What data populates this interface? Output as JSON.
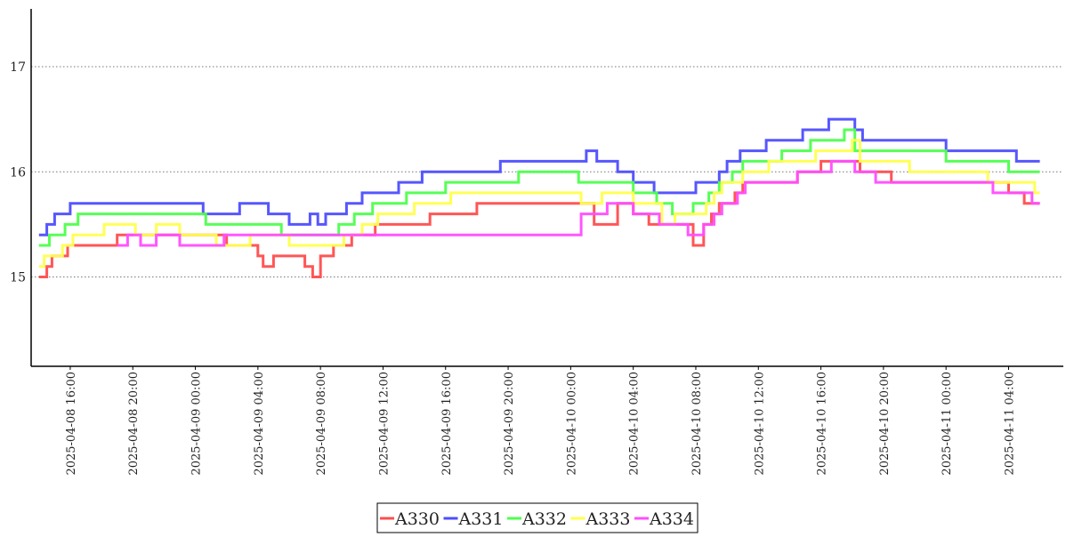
{
  "chart_data": {
    "type": "line",
    "title": "",
    "xlabel": "",
    "ylabel": "",
    "x_range": [
      "2025-04-08 13:30",
      "2025-04-11 07:30"
    ],
    "ylim": [
      14.15,
      17.55
    ],
    "y_ticks": [
      15,
      16,
      17
    ],
    "y_tick_labels": [
      "15",
      "16",
      "17"
    ],
    "x_ticks": [
      "2025-04-08 16:00",
      "2025-04-08 20:00",
      "2025-04-09 00:00",
      "2025-04-09 04:00",
      "2025-04-09 08:00",
      "2025-04-09 12:00",
      "2025-04-09 16:00",
      "2025-04-09 20:00",
      "2025-04-10 00:00",
      "2025-04-10 04:00",
      "2025-04-10 08:00",
      "2025-04-10 12:00",
      "2025-04-10 16:00",
      "2025-04-10 20:00",
      "2025-04-11 00:00",
      "2025-04-11 04:00"
    ],
    "x_tick_labels": [
      "2025-04-08  16:00",
      "2025-04-08  20:00",
      "2025-04-09  00:00",
      "2025-04-09  04:00",
      "2025-04-09  08:00",
      "2025-04-09  12:00",
      "2025-04-09  16:00",
      "2025-04-09  20:00",
      "2025-04-10  00:00",
      "2025-04-10  04:00",
      "2025-04-10  08:00",
      "2025-04-10  12:00",
      "2025-04-10  16:00",
      "2025-04-10  20:00",
      "2025-04-11  00:00",
      "2025-04-11  04:00"
    ],
    "grid": "horizontal dotted",
    "legend_position": "bottom-center",
    "line_style": "step",
    "series": [
      {
        "name": "A330",
        "color": "#ff4d4d",
        "points": [
          [
            "2025-04-08 14:00",
            15.0
          ],
          [
            "2025-04-08 14:30",
            15.1
          ],
          [
            "2025-04-08 14:50",
            15.2
          ],
          [
            "2025-04-08 15:50",
            15.3
          ],
          [
            "2025-04-08 19:00",
            15.4
          ],
          [
            "2025-04-09 02:00",
            15.3
          ],
          [
            "2025-04-09 04:00",
            15.2
          ],
          [
            "2025-04-09 04:20",
            15.1
          ],
          [
            "2025-04-09 05:00",
            15.2
          ],
          [
            "2025-04-09 07:00",
            15.1
          ],
          [
            "2025-04-09 07:30",
            15.0
          ],
          [
            "2025-04-09 08:00",
            15.2
          ],
          [
            "2025-04-09 08:50",
            15.3
          ],
          [
            "2025-04-09 10:00",
            15.4
          ],
          [
            "2025-04-09 11:30",
            15.5
          ],
          [
            "2025-04-09 15:00",
            15.6
          ],
          [
            "2025-04-09 18:00",
            15.7
          ],
          [
            "2025-04-10 01:30",
            15.5
          ],
          [
            "2025-04-10 03:00",
            15.7
          ],
          [
            "2025-04-10 04:00",
            15.6
          ],
          [
            "2025-04-10 05:00",
            15.5
          ],
          [
            "2025-04-10 07:50",
            15.3
          ],
          [
            "2025-04-10 08:30",
            15.5
          ],
          [
            "2025-04-10 09:00",
            15.6
          ],
          [
            "2025-04-10 09:30",
            15.7
          ],
          [
            "2025-04-10 10:30",
            15.8
          ],
          [
            "2025-04-10 11:00",
            15.9
          ],
          [
            "2025-04-10 14:30",
            16.0
          ],
          [
            "2025-04-10 16:00",
            16.1
          ],
          [
            "2025-04-10 18:30",
            16.0
          ],
          [
            "2025-04-10 20:30",
            15.9
          ],
          [
            "2025-04-11 04:00",
            15.8
          ],
          [
            "2025-04-11 05:00",
            15.7
          ],
          [
            "2025-04-11 06:00",
            15.7
          ]
        ]
      },
      {
        "name": "A331",
        "color": "#4d4dff",
        "points": [
          [
            "2025-04-08 14:00",
            15.4
          ],
          [
            "2025-04-08 14:30",
            15.5
          ],
          [
            "2025-04-08 15:00",
            15.6
          ],
          [
            "2025-04-08 16:00",
            15.7
          ],
          [
            "2025-04-09 00:30",
            15.6
          ],
          [
            "2025-04-09 02:50",
            15.7
          ],
          [
            "2025-04-09 04:40",
            15.6
          ],
          [
            "2025-04-09 06:00",
            15.5
          ],
          [
            "2025-04-09 07:20",
            15.6
          ],
          [
            "2025-04-09 07:50",
            15.5
          ],
          [
            "2025-04-09 08:20",
            15.6
          ],
          [
            "2025-04-09 09:40",
            15.7
          ],
          [
            "2025-04-09 10:40",
            15.8
          ],
          [
            "2025-04-09 13:00",
            15.9
          ],
          [
            "2025-04-09 14:30",
            16.0
          ],
          [
            "2025-04-09 19:30",
            16.1
          ],
          [
            "2025-04-10 01:00",
            16.2
          ],
          [
            "2025-04-10 01:40",
            16.1
          ],
          [
            "2025-04-10 03:00",
            16.0
          ],
          [
            "2025-04-10 04:00",
            15.9
          ],
          [
            "2025-04-10 05:20",
            15.8
          ],
          [
            "2025-04-10 08:00",
            15.9
          ],
          [
            "2025-04-10 09:30",
            16.0
          ],
          [
            "2025-04-10 10:00",
            16.1
          ],
          [
            "2025-04-10 10:50",
            16.2
          ],
          [
            "2025-04-10 12:30",
            16.3
          ],
          [
            "2025-04-10 14:50",
            16.4
          ],
          [
            "2025-04-10 16:30",
            16.5
          ],
          [
            "2025-04-10 18:10",
            16.4
          ],
          [
            "2025-04-10 18:40",
            16.3
          ],
          [
            "2025-04-11 00:00",
            16.2
          ],
          [
            "2025-04-11 04:30",
            16.1
          ],
          [
            "2025-04-11 06:00",
            16.1
          ]
        ]
      },
      {
        "name": "A332",
        "color": "#4dff4d",
        "points": [
          [
            "2025-04-08 14:00",
            15.3
          ],
          [
            "2025-04-08 14:40",
            15.4
          ],
          [
            "2025-04-08 15:40",
            15.5
          ],
          [
            "2025-04-08 16:30",
            15.6
          ],
          [
            "2025-04-09 00:40",
            15.5
          ],
          [
            "2025-04-09 05:30",
            15.4
          ],
          [
            "2025-04-09 09:10",
            15.5
          ],
          [
            "2025-04-09 10:10",
            15.6
          ],
          [
            "2025-04-09 11:20",
            15.7
          ],
          [
            "2025-04-09 13:30",
            15.8
          ],
          [
            "2025-04-09 16:00",
            15.9
          ],
          [
            "2025-04-09 20:40",
            16.0
          ],
          [
            "2025-04-10 00:30",
            15.9
          ],
          [
            "2025-04-10 04:00",
            15.8
          ],
          [
            "2025-04-10 05:30",
            15.7
          ],
          [
            "2025-04-10 06:30",
            15.6
          ],
          [
            "2025-04-10 07:50",
            15.7
          ],
          [
            "2025-04-10 08:50",
            15.8
          ],
          [
            "2025-04-10 09:30",
            15.9
          ],
          [
            "2025-04-10 10:20",
            16.0
          ],
          [
            "2025-04-10 11:00",
            16.1
          ],
          [
            "2025-04-10 13:30",
            16.2
          ],
          [
            "2025-04-10 15:20",
            16.3
          ],
          [
            "2025-04-10 17:30",
            16.4
          ],
          [
            "2025-04-10 18:10",
            16.2
          ],
          [
            "2025-04-11 00:00",
            16.1
          ],
          [
            "2025-04-11 04:00",
            16.0
          ],
          [
            "2025-04-11 06:00",
            16.0
          ]
        ]
      },
      {
        "name": "A333",
        "color": "#ffff4d",
        "points": [
          [
            "2025-04-08 14:00",
            15.1
          ],
          [
            "2025-04-08 14:20",
            15.2
          ],
          [
            "2025-04-08 15:30",
            15.3
          ],
          [
            "2025-04-08 16:10",
            15.4
          ],
          [
            "2025-04-08 18:10",
            15.5
          ],
          [
            "2025-04-08 20:10",
            15.4
          ],
          [
            "2025-04-08 21:30",
            15.5
          ],
          [
            "2025-04-08 23:00",
            15.4
          ],
          [
            "2025-04-09 01:20",
            15.3
          ],
          [
            "2025-04-09 03:30",
            15.4
          ],
          [
            "2025-04-09 06:00",
            15.3
          ],
          [
            "2025-04-09 09:30",
            15.4
          ],
          [
            "2025-04-09 10:40",
            15.5
          ],
          [
            "2025-04-09 11:40",
            15.6
          ],
          [
            "2025-04-09 14:00",
            15.7
          ],
          [
            "2025-04-09 16:20",
            15.8
          ],
          [
            "2025-04-10 00:40",
            15.7
          ],
          [
            "2025-04-10 02:00",
            15.8
          ],
          [
            "2025-04-10 04:00",
            15.7
          ],
          [
            "2025-04-10 05:50",
            15.5
          ],
          [
            "2025-04-10 06:40",
            15.6
          ],
          [
            "2025-04-10 08:40",
            15.7
          ],
          [
            "2025-04-10 09:10",
            15.8
          ],
          [
            "2025-04-10 09:40",
            15.9
          ],
          [
            "2025-04-10 11:00",
            16.0
          ],
          [
            "2025-04-10 12:40",
            16.1
          ],
          [
            "2025-04-10 15:40",
            16.2
          ],
          [
            "2025-04-10 18:00",
            16.3
          ],
          [
            "2025-04-10 18:30",
            16.1
          ],
          [
            "2025-04-10 21:40",
            16.0
          ],
          [
            "2025-04-11 02:40",
            15.9
          ],
          [
            "2025-04-11 05:40",
            15.8
          ],
          [
            "2025-04-11 06:00",
            15.8
          ]
        ]
      },
      {
        "name": "A334",
        "color": "#ff4dff",
        "points": [
          [
            "2025-04-08 19:00",
            15.3
          ],
          [
            "2025-04-08 19:40",
            15.4
          ],
          [
            "2025-04-08 20:30",
            15.3
          ],
          [
            "2025-04-08 21:30",
            15.4
          ],
          [
            "2025-04-08 23:00",
            15.3
          ],
          [
            "2025-04-09 01:50",
            15.4
          ],
          [
            "2025-04-10 00:40",
            15.6
          ],
          [
            "2025-04-10 02:20",
            15.7
          ],
          [
            "2025-04-10 04:00",
            15.6
          ],
          [
            "2025-04-10 05:40",
            15.5
          ],
          [
            "2025-04-10 07:30",
            15.4
          ],
          [
            "2025-04-10 08:30",
            15.5
          ],
          [
            "2025-04-10 09:10",
            15.6
          ],
          [
            "2025-04-10 09:40",
            15.7
          ],
          [
            "2025-04-10 10:40",
            15.8
          ],
          [
            "2025-04-10 11:10",
            15.9
          ],
          [
            "2025-04-10 14:30",
            16.0
          ],
          [
            "2025-04-10 16:40",
            16.1
          ],
          [
            "2025-04-10 18:10",
            16.0
          ],
          [
            "2025-04-10 19:30",
            15.9
          ],
          [
            "2025-04-11 03:00",
            15.8
          ],
          [
            "2025-04-11 05:30",
            15.7
          ],
          [
            "2025-04-11 06:00",
            15.7
          ]
        ]
      }
    ]
  }
}
